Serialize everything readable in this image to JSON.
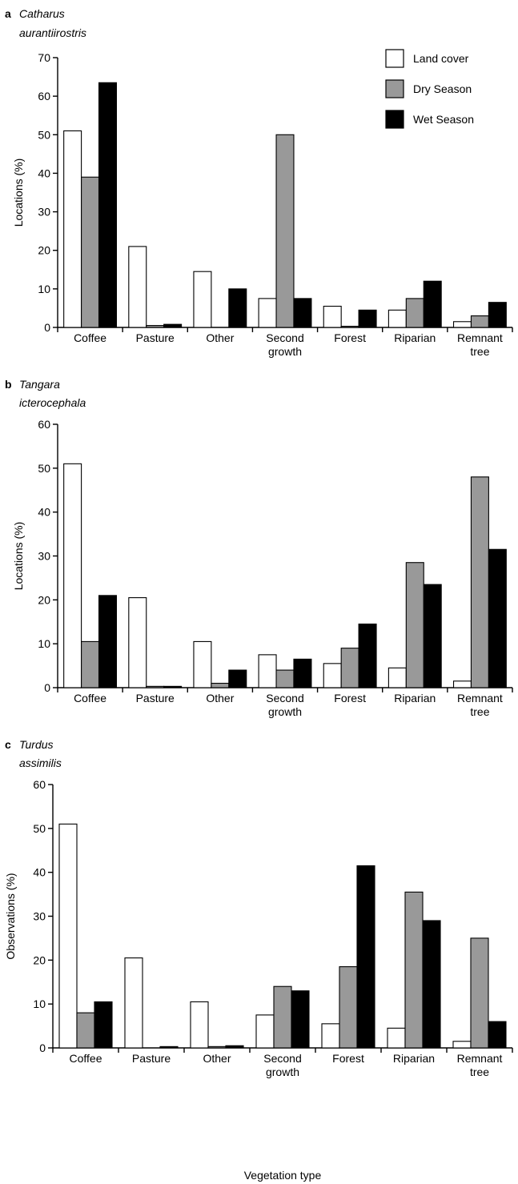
{
  "legend": [
    {
      "label": "Land cover",
      "color": "#ffffff"
    },
    {
      "label": "Dry Season",
      "color": "#999999"
    },
    {
      "label": "Wet Season",
      "color": "#000000"
    }
  ],
  "chart_data": [
    {
      "type": "bar",
      "panel": "a",
      "title": "Catharus aurantiirostris",
      "title_lines": [
        "Catharus",
        "aurantiirostris"
      ],
      "ylabel": "Locations (%)",
      "xlabel": "",
      "ylim": [
        0,
        70
      ],
      "yticks": [
        0,
        10,
        20,
        30,
        40,
        50,
        60,
        70
      ],
      "legend_position": "top-right",
      "categories": [
        "Coffee",
        "Pasture",
        "Other",
        "Second growth",
        "Forest",
        "Riparian",
        "Remnant tree"
      ],
      "category_lines": [
        [
          "Coffee"
        ],
        [
          "Pasture"
        ],
        [
          "Other"
        ],
        [
          "Second",
          "growth"
        ],
        [
          "Forest"
        ],
        [
          "Riparian"
        ],
        [
          "Remnant",
          "tree"
        ]
      ],
      "series": [
        {
          "name": "Land cover",
          "values": [
            51,
            21,
            14.5,
            7.5,
            5.5,
            4.5,
            1.5
          ]
        },
        {
          "name": "Dry Season",
          "values": [
            39,
            0.5,
            0,
            50,
            0.3,
            7.5,
            3
          ]
        },
        {
          "name": "Wet Season",
          "values": [
            63.5,
            0.8,
            10,
            7.5,
            4.5,
            12,
            6.5
          ]
        }
      ]
    },
    {
      "type": "bar",
      "panel": "b",
      "title": "Tangara icterocephala",
      "title_lines": [
        "Tangara",
        "icterocephala"
      ],
      "ylabel": "Locations (%)",
      "xlabel": "",
      "ylim": [
        0,
        60
      ],
      "yticks": [
        0,
        10,
        20,
        30,
        40,
        50,
        60
      ],
      "categories": [
        "Coffee",
        "Pasture",
        "Other",
        "Second growth",
        "Forest",
        "Riparian",
        "Remnant tree"
      ],
      "category_lines": [
        [
          "Coffee"
        ],
        [
          "Pasture"
        ],
        [
          "Other"
        ],
        [
          "Second",
          "growth"
        ],
        [
          "Forest"
        ],
        [
          "Riparian"
        ],
        [
          "Remnant",
          "tree"
        ]
      ],
      "series": [
        {
          "name": "Land cover",
          "values": [
            51,
            20.5,
            10.5,
            7.5,
            5.5,
            4.5,
            1.5
          ]
        },
        {
          "name": "Dry Season",
          "values": [
            10.5,
            0.3,
            1,
            4,
            9,
            28.5,
            48
          ]
        },
        {
          "name": "Wet Season",
          "values": [
            21,
            0.3,
            4,
            6.5,
            14.5,
            23.5,
            31.5
          ]
        }
      ]
    },
    {
      "type": "bar",
      "panel": "c",
      "title": "Turdus assimilis",
      "title_lines": [
        "Turdus",
        "assimilis"
      ],
      "ylabel": "Observations (%)",
      "xlabel": "Vegetation type",
      "ylim": [
        0,
        60
      ],
      "yticks": [
        0,
        10,
        20,
        30,
        40,
        50,
        60
      ],
      "categories": [
        "Coffee",
        "Pasture",
        "Other",
        "Second growth",
        "Forest",
        "Riparian",
        "Remnant tree"
      ],
      "category_lines": [
        [
          "Coffee"
        ],
        [
          "Pasture"
        ],
        [
          "Other"
        ],
        [
          "Second",
          "growth"
        ],
        [
          "Forest"
        ],
        [
          "Riparian"
        ],
        [
          "Remnant",
          "tree"
        ]
      ],
      "series": [
        {
          "name": "Land cover",
          "values": [
            51,
            20.5,
            10.5,
            7.5,
            5.5,
            4.5,
            1.5
          ]
        },
        {
          "name": "Dry Season",
          "values": [
            8,
            0,
            0.3,
            14,
            18.5,
            35.5,
            25
          ]
        },
        {
          "name": "Wet Season",
          "values": [
            10.5,
            0.3,
            0.5,
            13,
            41.5,
            29,
            6
          ]
        }
      ]
    }
  ]
}
